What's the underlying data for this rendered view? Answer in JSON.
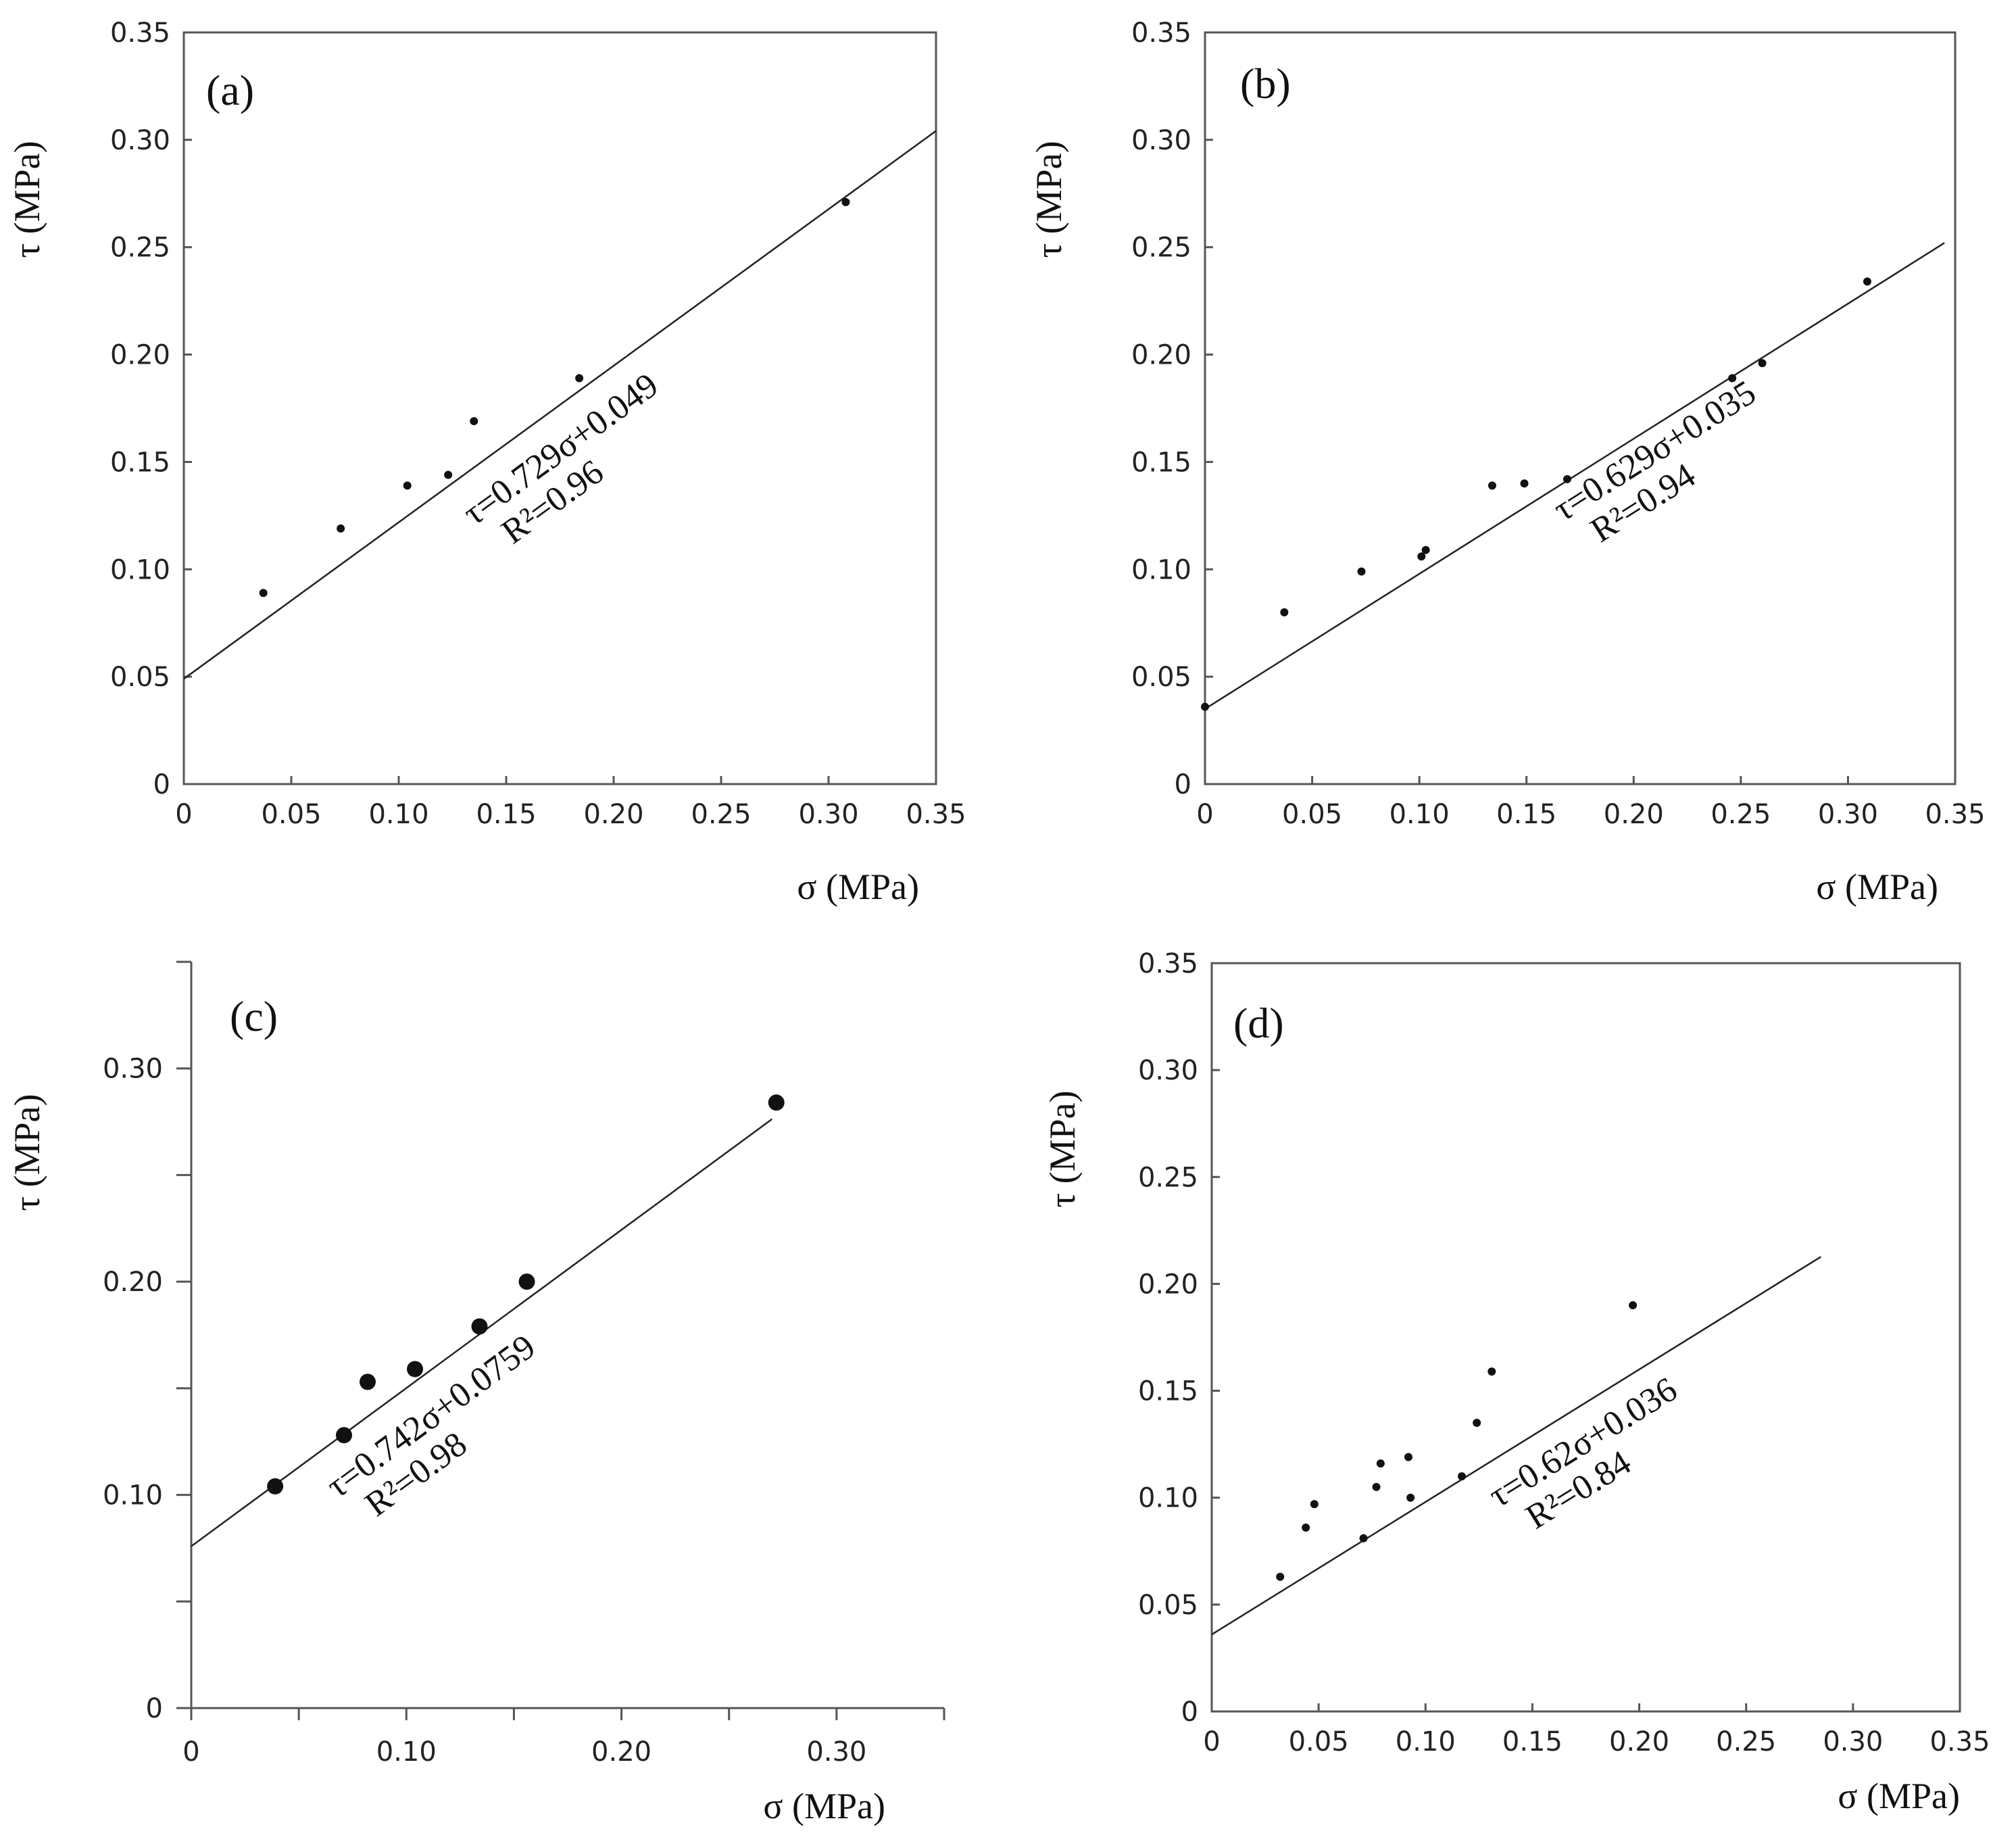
{
  "chart_data": [
    {
      "type": "scatter",
      "panel": "(a)",
      "xlabel": "σ (MPa)",
      "ylabel": "τ (MPa)",
      "xlim": [
        0,
        0.35
      ],
      "ylim": [
        0,
        0.35
      ],
      "xticks": [
        0,
        0.05,
        0.1,
        0.15,
        0.2,
        0.25,
        0.3,
        0.35
      ],
      "xtick_labels": [
        "0",
        "0.05",
        "0.10",
        "0.15",
        "0.20",
        "0.25",
        "0.30",
        "0.35"
      ],
      "yticks": [
        0,
        0.05,
        0.1,
        0.15,
        0.2,
        0.25,
        0.3,
        0.35
      ],
      "ytick_labels": [
        "0",
        "0.05",
        "0.10",
        "0.15",
        "0.20",
        "0.25",
        "0.30",
        "0.35"
      ],
      "frame": "box",
      "points": [
        {
          "x": 0.037,
          "y": 0.089
        },
        {
          "x": 0.073,
          "y": 0.119
        },
        {
          "x": 0.104,
          "y": 0.139
        },
        {
          "x": 0.123,
          "y": 0.144
        },
        {
          "x": 0.135,
          "y": 0.169
        },
        {
          "x": 0.184,
          "y": 0.189
        },
        {
          "x": 0.308,
          "y": 0.271
        }
      ],
      "marker": "small",
      "fit": {
        "slope": 0.729,
        "intercept": 0.049,
        "x_range": [
          0,
          0.35
        ]
      },
      "equation": "τ=0.729σ+0.049",
      "r2": "R²=0.96",
      "annotation_anchor": [
        0.135,
        0.12
      ]
    },
    {
      "type": "scatter",
      "panel": "(b)",
      "xlabel": "σ (MPa)",
      "ylabel": "τ (MPa)",
      "xlim": [
        0,
        0.35
      ],
      "ylim": [
        0,
        0.35
      ],
      "xticks": [
        0,
        0.05,
        0.1,
        0.15,
        0.2,
        0.25,
        0.3,
        0.35
      ],
      "xtick_labels": [
        "0",
        "0.05",
        "0.10",
        "0.15",
        "0.20",
        "0.25",
        "0.30",
        "0.35"
      ],
      "yticks": [
        0,
        0.05,
        0.1,
        0.15,
        0.2,
        0.25,
        0.3,
        0.35
      ],
      "ytick_labels": [
        "0",
        "0.05",
        "0.10",
        "0.15",
        "0.20",
        "0.25",
        "0.30",
        "0.35"
      ],
      "frame": "box",
      "points": [
        {
          "x": 0.0,
          "y": 0.036
        },
        {
          "x": 0.037,
          "y": 0.08
        },
        {
          "x": 0.073,
          "y": 0.099
        },
        {
          "x": 0.101,
          "y": 0.106
        },
        {
          "x": 0.103,
          "y": 0.109
        },
        {
          "x": 0.134,
          "y": 0.139
        },
        {
          "x": 0.149,
          "y": 0.14
        },
        {
          "x": 0.169,
          "y": 0.142
        },
        {
          "x": 0.246,
          "y": 0.189
        },
        {
          "x": 0.26,
          "y": 0.196
        },
        {
          "x": 0.309,
          "y": 0.234
        }
      ],
      "marker": "small",
      "fit": {
        "slope": 0.629,
        "intercept": 0.035,
        "x_range": [
          0,
          0.345
        ]
      },
      "equation": "τ=0.629σ+0.035",
      "r2": "R²=0.94",
      "annotation_anchor": [
        0.167,
        0.122
      ]
    },
    {
      "type": "scatter",
      "panel": "(c)",
      "xlabel": "σ (MPa)",
      "ylabel": "τ (MPa)",
      "xlim": [
        0,
        0.35
      ],
      "ylim": [
        0,
        0.35
      ],
      "xticks": [
        0,
        0.05,
        0.1,
        0.15,
        0.2,
        0.25,
        0.3,
        0.35
      ],
      "xtick_labels": [
        "0",
        "",
        "0.10",
        "",
        "0.20",
        "",
        "0.30",
        ""
      ],
      "yticks": [
        0,
        0.05,
        0.1,
        0.15,
        0.2,
        0.25,
        0.3,
        0.35
      ],
      "ytick_labels": [
        "0",
        "",
        "0.10",
        "",
        "0.20",
        "",
        "0.30",
        ""
      ],
      "frame": "open",
      "points": [
        {
          "x": 0.039,
          "y": 0.104
        },
        {
          "x": 0.071,
          "y": 0.128
        },
        {
          "x": 0.082,
          "y": 0.153
        },
        {
          "x": 0.104,
          "y": 0.159
        },
        {
          "x": 0.134,
          "y": 0.179
        },
        {
          "x": 0.156,
          "y": 0.2
        },
        {
          "x": 0.272,
          "y": 0.284
        }
      ],
      "marker": "large",
      "fit": {
        "slope": 0.742,
        "intercept": 0.0759,
        "x_range": [
          0,
          0.27
        ]
      },
      "equation": "τ=0.742σ+0.0759",
      "r2": "R²=0.98",
      "annotation_anchor": [
        0.068,
        0.098
      ]
    },
    {
      "type": "scatter",
      "panel": "(d)",
      "xlabel": "σ (MPa)",
      "ylabel": "τ (MPa)",
      "xlim": [
        0,
        0.35
      ],
      "ylim": [
        0,
        0.35
      ],
      "xticks": [
        0,
        0.05,
        0.1,
        0.15,
        0.2,
        0.25,
        0.3,
        0.35
      ],
      "xtick_labels": [
        "0",
        "0.05",
        "0.10",
        "0.15",
        "0.20",
        "0.25",
        "0.30",
        "0.35"
      ],
      "yticks": [
        0,
        0.05,
        0.1,
        0.15,
        0.2,
        0.25,
        0.3,
        0.35
      ],
      "ytick_labels": [
        "0",
        "0.05",
        "0.10",
        "0.15",
        "0.20",
        "0.25",
        "0.30",
        "0.35"
      ],
      "frame": "box",
      "points": [
        {
          "x": 0.032,
          "y": 0.063
        },
        {
          "x": 0.044,
          "y": 0.086
        },
        {
          "x": 0.048,
          "y": 0.097
        },
        {
          "x": 0.071,
          "y": 0.081
        },
        {
          "x": 0.077,
          "y": 0.105
        },
        {
          "x": 0.079,
          "y": 0.116
        },
        {
          "x": 0.092,
          "y": 0.119
        },
        {
          "x": 0.093,
          "y": 0.1
        },
        {
          "x": 0.117,
          "y": 0.11
        },
        {
          "x": 0.124,
          "y": 0.135
        },
        {
          "x": 0.131,
          "y": 0.159
        },
        {
          "x": 0.197,
          "y": 0.19
        }
      ],
      "marker": "small",
      "fit": {
        "slope": 0.62,
        "intercept": 0.036,
        "x_range": [
          0,
          0.285
        ]
      },
      "equation": "τ=0.62σ+0.036",
      "r2": "R²=0.84",
      "annotation_anchor": [
        0.134,
        0.095
      ]
    }
  ]
}
